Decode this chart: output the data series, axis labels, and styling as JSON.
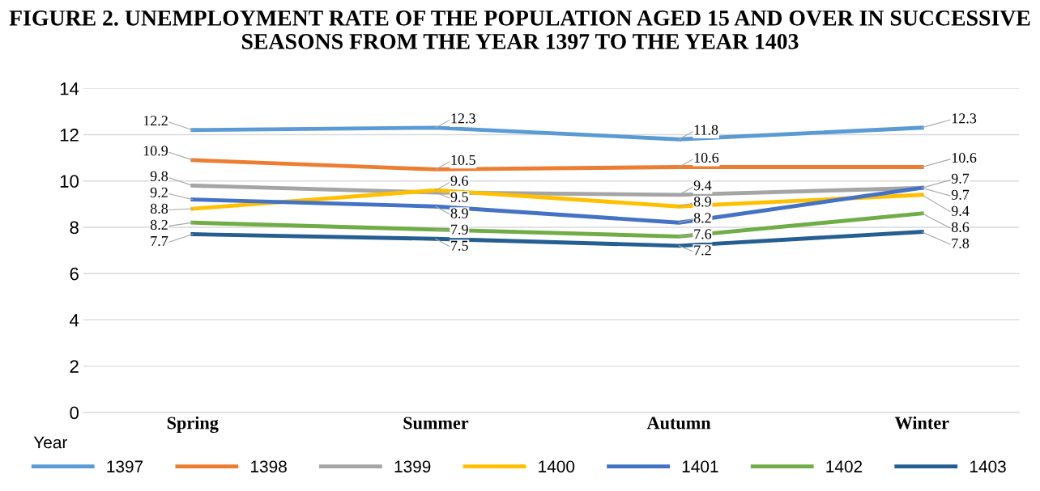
{
  "chart_data": {
    "type": "line",
    "title": "FIGURE 2. UNEMPLOYMENT RATE OF THE POPULATION AGED 15 AND OVER IN SUCCESSIVE SEASONS FROM THE YEAR 1397 TO THE YEAR 1403",
    "categories": [
      "Spring",
      "Summer",
      "Autumn",
      "Winter"
    ],
    "series": [
      {
        "name": "1397",
        "color": "#5b9bd5",
        "values": [
          12.2,
          12.3,
          11.8,
          12.3
        ]
      },
      {
        "name": "1398",
        "color": "#ed7d31",
        "values": [
          10.9,
          10.5,
          10.6,
          10.6
        ]
      },
      {
        "name": "1399",
        "color": "#a5a5a5",
        "values": [
          9.8,
          9.5,
          9.4,
          9.7
        ]
      },
      {
        "name": "1400",
        "color": "#ffc000",
        "values": [
          8.8,
          9.6,
          8.9,
          9.4
        ]
      },
      {
        "name": "1401",
        "color": "#4472c4",
        "values": [
          9.2,
          8.9,
          8.2,
          9.7
        ]
      },
      {
        "name": "1402",
        "color": "#70ad47",
        "values": [
          8.2,
          7.9,
          7.6,
          8.6
        ]
      },
      {
        "name": "1403",
        "color": "#255e91",
        "values": [
          7.7,
          7.5,
          7.2,
          7.8
        ]
      }
    ],
    "ylim": [
      0,
      14
    ],
    "yticks": [
      0,
      2,
      4,
      6,
      8,
      10,
      12,
      14
    ],
    "grid": "y",
    "legend": "bottom",
    "legend_title": "Year",
    "data_labels": true,
    "line_style": "solid"
  }
}
